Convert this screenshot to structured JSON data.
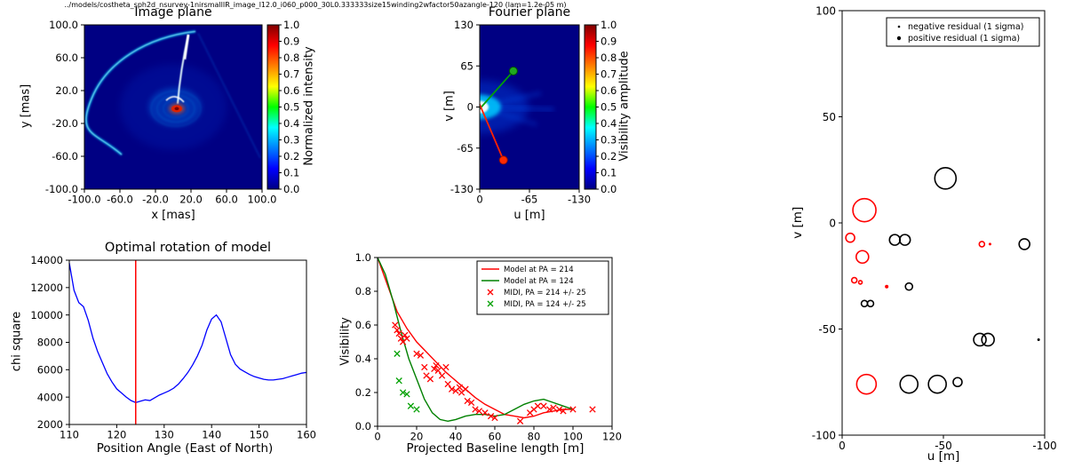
{
  "figure_title": "../models/costheta_sph2d_nsurvey-1nirsmallIR_image_l12.0_i060_p000_30L0.333333size15winding2wfactor50azangle-120 (lam=1.2e-05 m)",
  "colors": {
    "frame": "#000000",
    "accent_red": "#ff0000",
    "accent_green": "#00a000",
    "accent_blue": "#0000ff",
    "jet": [
      "#000083",
      "#0000ff",
      "#00ffff",
      "#00ff00",
      "#ffff00",
      "#ff0000",
      "#800000"
    ]
  },
  "chart_data": [
    {
      "id": "image_plane",
      "type": "heatmap",
      "title": "Image plane",
      "xlabel": "x [mas]",
      "ylabel": "y [mas]",
      "xlim": [
        -100,
        100
      ],
      "ylim": [
        -100,
        100
      ],
      "xticks": [
        -100,
        -60,
        -20,
        20,
        60,
        100
      ],
      "xtick_labels": [
        "-100.0",
        "-60.0",
        "-20.0",
        "20.0",
        "60.0",
        "100.0"
      ],
      "yticks": [
        100,
        60,
        20,
        -20,
        -60,
        -100
      ],
      "ytick_labels": [
        "100.0",
        "60.0",
        "20.0",
        "-20.0",
        "-60.0",
        "-100.0"
      ],
      "background": "#000083",
      "features": {
        "core": {
          "x": 4,
          "y": -2,
          "color": "#dd2200"
        },
        "arc": "bright cyan-white spiral arc sweeping from upper right across the left side",
        "spike": "bright white radial spike from core toward upper right"
      },
      "colorbar": {
        "label": "Normalized intensity",
        "colormap": "jet",
        "ticks": [
          0,
          0.1,
          0.2,
          0.3,
          0.4,
          0.5,
          0.6,
          0.7,
          0.8,
          0.9,
          1.0
        ],
        "tick_labels": [
          "0.0",
          "0.1",
          "0.2",
          "0.3",
          "0.4",
          "0.5",
          "0.6",
          "0.7",
          "0.8",
          "0.9",
          "1.0"
        ]
      }
    },
    {
      "id": "fourier_plane",
      "type": "heatmap",
      "title": "Fourier plane",
      "xlabel": "u [m]",
      "ylabel": "v [m]",
      "xlim": [
        0,
        -130
      ],
      "ylim": [
        -130,
        130
      ],
      "xticks": [
        0,
        -65,
        -130
      ],
      "xtick_labels": [
        "0",
        "-65",
        "-130"
      ],
      "yticks": [
        130,
        65,
        0,
        -65,
        -130
      ],
      "ytick_labels": [
        "130",
        "65",
        "0",
        "-65",
        "-130"
      ],
      "background": "#000083",
      "overlays": {
        "green_line": {
          "from": [
            0,
            -3
          ],
          "to": [
            -44,
            57
          ],
          "color": "#00a000"
        },
        "red_line": {
          "from": [
            0,
            4
          ],
          "to": [
            -31,
            -84
          ],
          "color": "#ff2200"
        }
      },
      "colorbar": {
        "label": "Visibility amplitude",
        "colormap": "jet",
        "ticks": [
          0,
          0.1,
          0.2,
          0.3,
          0.4,
          0.5,
          0.6,
          0.7,
          0.8,
          0.9,
          1.0
        ],
        "tick_labels": [
          "0.0",
          "0.1",
          "0.2",
          "0.3",
          "0.4",
          "0.5",
          "0.6",
          "0.7",
          "0.8",
          "0.9",
          "1.0"
        ]
      }
    },
    {
      "id": "chi_square",
      "type": "line",
      "title": "Optimal rotation of model",
      "xlabel": "Position Angle (East of North)",
      "ylabel": "chi square",
      "xlim": [
        110,
        160
      ],
      "ylim": [
        2000,
        14000
      ],
      "xticks": [
        110,
        120,
        130,
        140,
        150,
        160
      ],
      "xtick_labels": [
        "110",
        "120",
        "130",
        "140",
        "150",
        "160"
      ],
      "yticks": [
        2000,
        4000,
        6000,
        8000,
        10000,
        12000,
        14000
      ],
      "ytick_labels": [
        "2000",
        "4000",
        "6000",
        "8000",
        "10000",
        "12000",
        "14000"
      ],
      "vline": {
        "x": 124,
        "color": "#ff0000"
      },
      "series": [
        {
          "name": "chi square",
          "color": "#0000ff",
          "x": [
            110,
            111,
            112,
            113,
            114,
            115,
            116,
            117,
            118,
            119,
            120,
            121,
            122,
            123,
            124,
            125,
            126,
            127,
            128,
            129,
            130,
            131,
            132,
            133,
            134,
            135,
            136,
            137,
            138,
            139,
            140,
            141,
            142,
            143,
            144,
            145,
            146,
            147,
            148,
            149,
            150,
            151,
            152,
            153,
            154,
            155,
            156,
            157,
            158,
            159,
            160
          ],
          "y": [
            13800,
            11800,
            10900,
            10600,
            9600,
            8300,
            7300,
            6500,
            5700,
            5100,
            4600,
            4300,
            4000,
            3750,
            3600,
            3700,
            3800,
            3750,
            3950,
            4150,
            4300,
            4450,
            4650,
            4950,
            5350,
            5800,
            6350,
            7000,
            7800,
            8900,
            9700,
            10000,
            9500,
            8300,
            7100,
            6400,
            6050,
            5850,
            5650,
            5500,
            5400,
            5300,
            5250,
            5250,
            5300,
            5350,
            5450,
            5550,
            5650,
            5750,
            5800
          ]
        }
      ]
    },
    {
      "id": "visibility",
      "type": "line",
      "title": "",
      "xlabel": "Projected Baseline length [m]",
      "ylabel": "Visibility",
      "xlim": [
        0,
        120
      ],
      "ylim": [
        0,
        1.0
      ],
      "xticks": [
        0,
        20,
        40,
        60,
        80,
        100,
        120
      ],
      "xtick_labels": [
        "0",
        "20",
        "40",
        "60",
        "80",
        "100",
        "120"
      ],
      "yticks": [
        0,
        0.2,
        0.4,
        0.6,
        0.8,
        1.0
      ],
      "ytick_labels": [
        "0.0",
        "0.2",
        "0.4",
        "0.6",
        "0.8",
        "1.0"
      ],
      "legend_position": "upper right",
      "series": [
        {
          "name": "Model at PA = 214",
          "color": "#ff0000",
          "marker": "line",
          "x": [
            0,
            5,
            10,
            15,
            20,
            25,
            30,
            35,
            40,
            45,
            50,
            55,
            60,
            65,
            70,
            75,
            80,
            85,
            90,
            95,
            100
          ],
          "y": [
            1.0,
            0.84,
            0.68,
            0.58,
            0.5,
            0.44,
            0.38,
            0.32,
            0.27,
            0.22,
            0.17,
            0.13,
            0.1,
            0.07,
            0.06,
            0.05,
            0.06,
            0.08,
            0.09,
            0.1,
            0.1
          ]
        },
        {
          "name": "Model at PA = 124",
          "color": "#008000",
          "marker": "line",
          "x": [
            0,
            4,
            8,
            12,
            16,
            20,
            24,
            28,
            32,
            36,
            40,
            45,
            50,
            55,
            60,
            65,
            70,
            75,
            80,
            85,
            90,
            95,
            100
          ],
          "y": [
            1.0,
            0.9,
            0.74,
            0.56,
            0.4,
            0.28,
            0.16,
            0.08,
            0.04,
            0.03,
            0.04,
            0.06,
            0.07,
            0.07,
            0.06,
            0.07,
            0.1,
            0.13,
            0.15,
            0.16,
            0.14,
            0.12,
            0.1
          ]
        },
        {
          "name": "MIDI, PA = 214 +/- 25",
          "color": "#ff0000",
          "marker": "x",
          "x": [
            9,
            10,
            11,
            12,
            13,
            14,
            15,
            20,
            22,
            24,
            25,
            27,
            29,
            30,
            31,
            33,
            35,
            36,
            38,
            40,
            42,
            43,
            45,
            46,
            48,
            50,
            52,
            55,
            58,
            60,
            73,
            78,
            80,
            82,
            85,
            88,
            90,
            93,
            95,
            100,
            110
          ],
          "y": [
            0.6,
            0.57,
            0.55,
            0.52,
            0.5,
            0.54,
            0.52,
            0.43,
            0.42,
            0.35,
            0.3,
            0.28,
            0.34,
            0.36,
            0.33,
            0.3,
            0.35,
            0.25,
            0.22,
            0.21,
            0.23,
            0.2,
            0.22,
            0.15,
            0.14,
            0.1,
            0.09,
            0.08,
            0.06,
            0.05,
            0.03,
            0.08,
            0.1,
            0.12,
            0.12,
            0.1,
            0.11,
            0.1,
            0.09,
            0.1,
            0.1
          ]
        },
        {
          "name": "MIDI, PA = 124 +/- 25",
          "color": "#00a000",
          "marker": "x",
          "x": [
            10,
            11,
            13,
            15,
            17,
            20
          ],
          "y": [
            0.43,
            0.27,
            0.2,
            0.19,
            0.12,
            0.1
          ]
        }
      ]
    },
    {
      "id": "uv_residuals",
      "type": "scatter",
      "title": "",
      "xlabel": "u [m]",
      "ylabel": "v [m]",
      "xlim": [
        0,
        -100
      ],
      "ylim": [
        -100,
        100
      ],
      "xticks": [
        0,
        -50,
        -100
      ],
      "xtick_labels": [
        "0",
        "-50",
        "-100"
      ],
      "yticks": [
        -100,
        -50,
        0,
        50,
        100
      ],
      "ytick_labels": [
        "-100",
        "-50",
        "0",
        "50",
        "100"
      ],
      "legend": [
        "negative residual (1 sigma)",
        "positive residual (1 sigma)"
      ],
      "points": [
        {
          "u": -51,
          "v": 21,
          "r": 12,
          "color": "#000000"
        },
        {
          "u": -11,
          "v": 6,
          "r": 13,
          "color": "#ff0000"
        },
        {
          "u": -4,
          "v": -7,
          "r": 5,
          "color": "#ff0000"
        },
        {
          "u": -10,
          "v": -16,
          "r": 7,
          "color": "#ff0000"
        },
        {
          "u": -26,
          "v": -8,
          "r": 6,
          "color": "#000000"
        },
        {
          "u": -31,
          "v": -8,
          "r": 6,
          "color": "#000000"
        },
        {
          "u": -69,
          "v": -10,
          "r": 3,
          "color": "#ff0000"
        },
        {
          "u": -73,
          "v": -10,
          "r": 1.5,
          "color": "#ff0000",
          "filled": true
        },
        {
          "u": -90,
          "v": -10,
          "r": 6,
          "color": "#000000"
        },
        {
          "u": -6,
          "v": -27,
          "r": 3,
          "color": "#ff0000"
        },
        {
          "u": -9,
          "v": -28,
          "r": 2,
          "color": "#ff0000"
        },
        {
          "u": -22,
          "v": -30,
          "r": 2,
          "color": "#ff0000",
          "filled": true
        },
        {
          "u": -33,
          "v": -30,
          "r": 4,
          "color": "#000000"
        },
        {
          "u": -11,
          "v": -38,
          "r": 3.5,
          "color": "#000000"
        },
        {
          "u": -14,
          "v": -38,
          "r": 3.5,
          "color": "#000000"
        },
        {
          "u": -68,
          "v": -55,
          "r": 7,
          "color": "#000000"
        },
        {
          "u": -72,
          "v": -55,
          "r": 7,
          "color": "#000000"
        },
        {
          "u": -97,
          "v": -55,
          "r": 1.5,
          "color": "#000000",
          "filled": true
        },
        {
          "u": -12,
          "v": -76,
          "r": 11,
          "color": "#ff0000"
        },
        {
          "u": -33,
          "v": -76,
          "r": 10,
          "color": "#000000"
        },
        {
          "u": -47,
          "v": -76,
          "r": 10,
          "color": "#000000"
        },
        {
          "u": -57,
          "v": -75,
          "r": 5,
          "color": "#000000"
        }
      ]
    }
  ]
}
